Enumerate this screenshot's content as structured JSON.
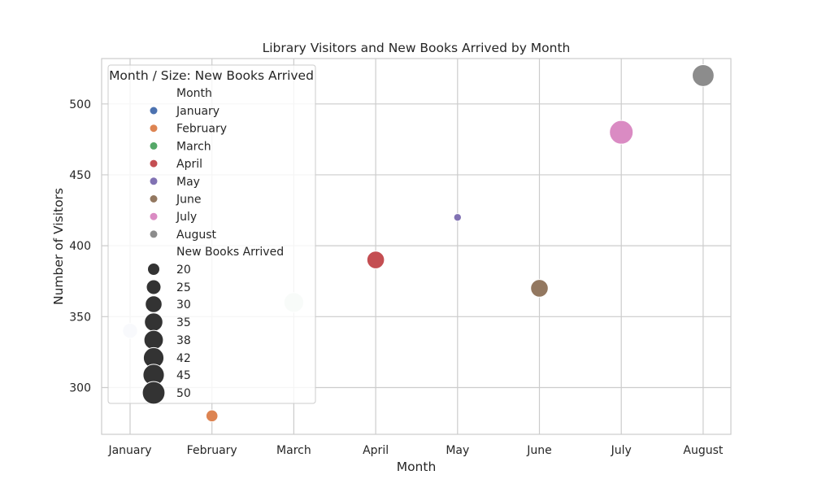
{
  "chart_data": {
    "type": "scatter",
    "title": "Library Visitors and New Books Arrived by Month",
    "xlabel": "Month",
    "ylabel": "Number of Visitors",
    "categories": [
      "January",
      "February",
      "March",
      "April",
      "May",
      "June",
      "July",
      "August"
    ],
    "ylim": [
      267,
      532
    ],
    "yticks": [
      300,
      350,
      400,
      450,
      500
    ],
    "grid": true,
    "legend": {
      "title": "Month / Size: New Books Arrived",
      "placement": "upper-left",
      "hue_header": "Month",
      "size_header": "New Books Arrived",
      "size_levels": [
        "20",
        "25",
        "30",
        "35",
        "38",
        "42",
        "45",
        "50"
      ]
    },
    "points": [
      {
        "month": "January",
        "visitors": 340,
        "new_books": 30,
        "color": "#d9e2ef"
      },
      {
        "month": "February",
        "visitors": 280,
        "new_books": 25,
        "color": "#dd8452"
      },
      {
        "month": "March",
        "visitors": 360,
        "new_books": 40,
        "color": "#dcebe0"
      },
      {
        "month": "April",
        "visitors": 390,
        "new_books": 35,
        "color": "#c44e52"
      },
      {
        "month": "May",
        "visitors": 420,
        "new_books": 20,
        "color": "#8172b3"
      },
      {
        "month": "June",
        "visitors": 370,
        "new_books": 35,
        "color": "#937860"
      },
      {
        "month": "July",
        "visitors": 480,
        "new_books": 50,
        "color": "#da8bc3"
      },
      {
        "month": "August",
        "visitors": 520,
        "new_books": 45,
        "color": "#8c8c8c"
      }
    ],
    "hue_colors": {
      "January": "#4c72b0",
      "February": "#dd8452",
      "March": "#55a868",
      "April": "#c44e52",
      "May": "#8172b3",
      "June": "#937860",
      "July": "#da8bc3",
      "August": "#8c8c8c"
    },
    "size_marker_color": "#333333",
    "gridline_color": "#cccccc",
    "frame_color": "#cccccc"
  }
}
